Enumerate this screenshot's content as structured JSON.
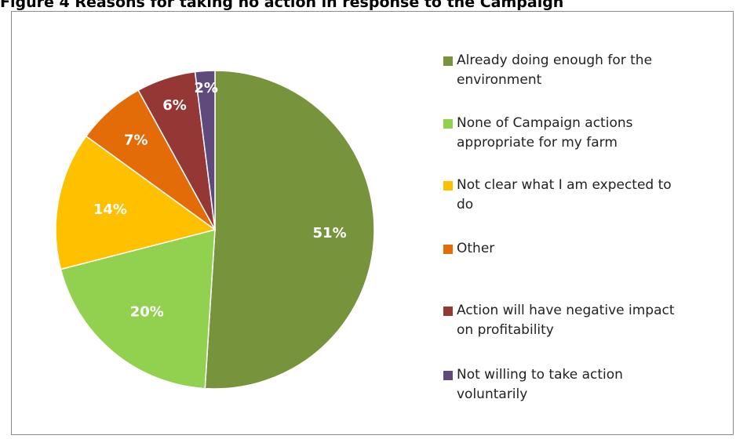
{
  "caption": "Figure 4 Reasons for taking no action in response to the Campaign",
  "chart_data": {
    "type": "pie",
    "title": "",
    "slices": [
      {
        "label": "Already doing enough for the\nenvironment",
        "value": 51,
        "display": "51%",
        "color": "#77933c"
      },
      {
        "label": "None of Campaign actions\nappropriate for my farm",
        "value": 20,
        "display": "20%",
        "color": "#92d050"
      },
      {
        "label": "Not clear what I am expected to\ndo",
        "value": 14,
        "display": "14%",
        "color": "#ffc000"
      },
      {
        "label": "Other",
        "value": 7,
        "display": "7%",
        "color": "#e36c09"
      },
      {
        "label": "Action will have negative impact\non profitability",
        "value": 6,
        "display": "6%",
        "color": "#953735"
      },
      {
        "label": "Not willing to take action\nvoluntarily",
        "value": 2,
        "display": "2%",
        "color": "#604a7b"
      }
    ],
    "legend_position": "right"
  }
}
